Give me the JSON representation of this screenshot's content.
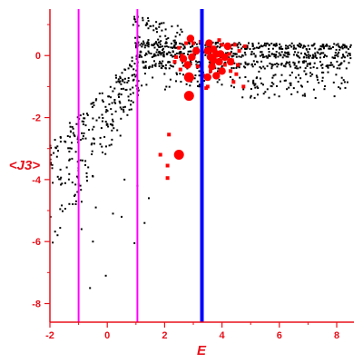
{
  "chart_data": {
    "type": "scatter",
    "xlabel": "E",
    "ylabel": "<J3>",
    "xlim": [
      -2,
      8.6
    ],
    "ylim": [
      -8.6,
      1.5
    ],
    "x_ticks": [
      -2,
      0,
      2,
      4,
      6,
      8
    ],
    "y_ticks": [
      0,
      -2,
      -4,
      -6,
      -8
    ],
    "grid": false,
    "colors": {
      "axis": "#e8101a",
      "small_points": "#000000",
      "large_points": "#ff0000",
      "vline_magenta": "#ff00ff",
      "vline_blue": "#0000ff"
    },
    "vertical_lines": [
      {
        "x": -1.0,
        "color": "#ff00ff"
      },
      {
        "x": 1.05,
        "color": "#ff00ff"
      },
      {
        "x": 3.3,
        "color": "#0000ff"
      }
    ],
    "large_points": [
      {
        "x": 2.85,
        "y": -1.3
      },
      {
        "x": 2.85,
        "y": -0.7
      },
      {
        "x": 2.5,
        "y": -3.2
      },
      {
        "x": 3.6,
        "y": -0.05
      },
      {
        "x": 3.5,
        "y": -0.7
      },
      {
        "x": 3.9,
        "y": -0.2
      },
      {
        "x": 4.2,
        "y": 0.3
      },
      {
        "x": 4.0,
        "y": -0.5
      },
      {
        "x": 3.7,
        "y": 0.2
      },
      {
        "x": 2.9,
        "y": 0.55
      },
      {
        "x": 2.8,
        "y": -0.3
      },
      {
        "x": 3.95,
        "y": 0.05
      },
      {
        "x": 3.65,
        "y": -0.35
      },
      {
        "x": 3.55,
        "y": 0.4
      },
      {
        "x": 4.3,
        "y": -0.2
      },
      {
        "x": 3.8,
        "y": -0.65
      },
      {
        "x": 2.65,
        "y": -0.1
      },
      {
        "x": 3.1,
        "y": 0.15
      },
      {
        "x": 3.8,
        "y": 0.05
      },
      {
        "x": 4.1,
        "y": -0.05
      },
      {
        "x": 2.95,
        "y": -0.05
      },
      {
        "x": 3.7,
        "y": -0.15
      },
      {
        "x": 3.5,
        "y": 0.15
      }
    ],
    "medium_points": [
      {
        "x": 3.5,
        "y": -1.0
      },
      {
        "x": 3.45,
        "y": -1.05
      },
      {
        "x": 2.15,
        "y": -2.55
      },
      {
        "x": 1.85,
        "y": -3.2
      },
      {
        "x": 2.1,
        "y": -3.55
      },
      {
        "x": 2.1,
        "y": -3.95
      },
      {
        "x": 4.5,
        "y": -0.6
      },
      {
        "x": 4.4,
        "y": -0.85
      },
      {
        "x": 4.75,
        "y": -1.0
      },
      {
        "x": 2.4,
        "y": -0.05
      },
      {
        "x": 2.55,
        "y": -0.45
      },
      {
        "x": 2.6,
        "y": 0.0
      },
      {
        "x": 3.25,
        "y": 0.45
      },
      {
        "x": 4.25,
        "y": 0.05
      },
      {
        "x": 4.55,
        "y": -0.3
      },
      {
        "x": 4.45,
        "y": 0.35
      },
      {
        "x": 3.9,
        "y": 0.5
      },
      {
        "x": 4.0,
        "y": 0.35
      },
      {
        "x": 2.75,
        "y": 0.4
      },
      {
        "x": 3.0,
        "y": 0.4
      },
      {
        "x": 4.1,
        "y": -0.3
      },
      {
        "x": 3.15,
        "y": -0.35
      },
      {
        "x": 3.6,
        "y": -0.5
      },
      {
        "x": 4.3,
        "y": -0.5
      },
      {
        "x": 4.6,
        "y": 0.15
      },
      {
        "x": 4.8,
        "y": 0.3
      },
      {
        "x": 2.5,
        "y": 0.25
      },
      {
        "x": 2.35,
        "y": -0.2
      },
      {
        "x": 3.35,
        "y": -0.65
      },
      {
        "x": 4.35,
        "y": -0.15
      }
    ]
  }
}
